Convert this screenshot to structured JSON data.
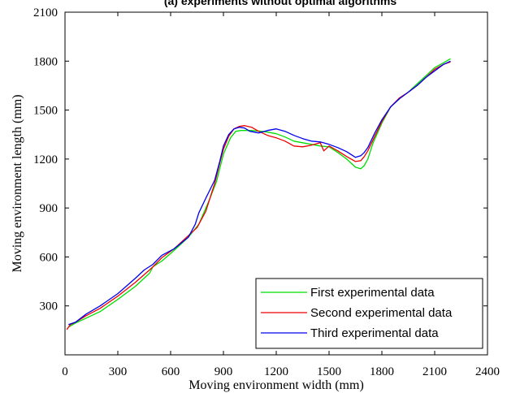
{
  "chart_data": {
    "type": "line",
    "title": "(a) experiments without optimal algorithms",
    "xlabel": "Moving environment width (mm)",
    "ylabel": "Moving environment length (mm)",
    "xlim": [
      0,
      2400
    ],
    "ylim": [
      0,
      2100
    ],
    "xticks": [
      "0",
      "300",
      "600",
      "900",
      "1200",
      "1500",
      "1800",
      "2100",
      "2400"
    ],
    "yticks": [
      "300",
      "600",
      "900",
      "1200",
      "1500",
      "1800",
      "2100"
    ],
    "grid": false,
    "legend_position": "bottom-right",
    "series": [
      {
        "name": "First experimental data",
        "color": "#00dd00",
        "x": [
          20,
          60,
          120,
          200,
          300,
          400,
          480,
          500,
          550,
          620,
          700,
          760,
          820,
          860,
          900,
          940,
          970,
          1000,
          1050,
          1100,
          1150,
          1200,
          1250,
          1300,
          1350,
          1400,
          1450,
          1500,
          1550,
          1600,
          1650,
          1680,
          1700,
          1720,
          1750,
          1800,
          1850,
          1900,
          1950,
          2000,
          2050,
          2100,
          2150,
          2190
        ],
        "y": [
          170,
          195,
          225,
          265,
          340,
          420,
          500,
          540,
          575,
          640,
          720,
          800,
          950,
          1060,
          1230,
          1330,
          1370,
          1375,
          1375,
          1372,
          1365,
          1355,
          1335,
          1310,
          1300,
          1290,
          1280,
          1275,
          1240,
          1200,
          1150,
          1140,
          1160,
          1200,
          1300,
          1420,
          1520,
          1570,
          1610,
          1660,
          1710,
          1760,
          1790,
          1815
        ]
      },
      {
        "name": "Second experimental data",
        "color": "#ee0000",
        "x": [
          10,
          30,
          60,
          120,
          200,
          300,
          400,
          480,
          500,
          550,
          620,
          700,
          750,
          800,
          850,
          880,
          900,
          930,
          960,
          990,
          1020,
          1060,
          1100,
          1150,
          1200,
          1250,
          1300,
          1350,
          1400,
          1450,
          1470,
          1500,
          1550,
          1600,
          1650,
          1680,
          1700,
          1720,
          1760,
          1800,
          1850,
          1900,
          1950,
          2000,
          2050,
          2100,
          2150,
          2190
        ],
        "y": [
          155,
          185,
          200,
          240,
          285,
          360,
          445,
          520,
          540,
          595,
          650,
          730,
          780,
          880,
          1050,
          1180,
          1260,
          1340,
          1385,
          1400,
          1405,
          1395,
          1370,
          1345,
          1330,
          1310,
          1280,
          1275,
          1285,
          1300,
          1250,
          1280,
          1250,
          1215,
          1185,
          1190,
          1215,
          1250,
          1340,
          1430,
          1520,
          1575,
          1610,
          1650,
          1700,
          1750,
          1780,
          1795
        ]
      },
      {
        "name": "Third experimental data",
        "color": "#0000ee",
        "x": [
          20,
          60,
          120,
          200,
          300,
          400,
          450,
          500,
          550,
          620,
          700,
          740,
          760,
          800,
          850,
          880,
          900,
          930,
          960,
          990,
          1020,
          1050,
          1100,
          1150,
          1200,
          1250,
          1300,
          1350,
          1400,
          1450,
          1500,
          1550,
          1600,
          1650,
          1680,
          1700,
          1720,
          1760,
          1800,
          1850,
          1900,
          1950,
          2000,
          2050,
          2100,
          2150,
          2190
        ],
        "y": [
          185,
          200,
          250,
          300,
          375,
          470,
          520,
          555,
          610,
          650,
          720,
          800,
          870,
          960,
          1070,
          1190,
          1280,
          1350,
          1385,
          1395,
          1390,
          1370,
          1360,
          1375,
          1385,
          1370,
          1345,
          1325,
          1310,
          1305,
          1290,
          1270,
          1245,
          1210,
          1220,
          1240,
          1270,
          1360,
          1440,
          1520,
          1570,
          1610,
          1650,
          1700,
          1740,
          1780,
          1800
        ]
      }
    ]
  }
}
